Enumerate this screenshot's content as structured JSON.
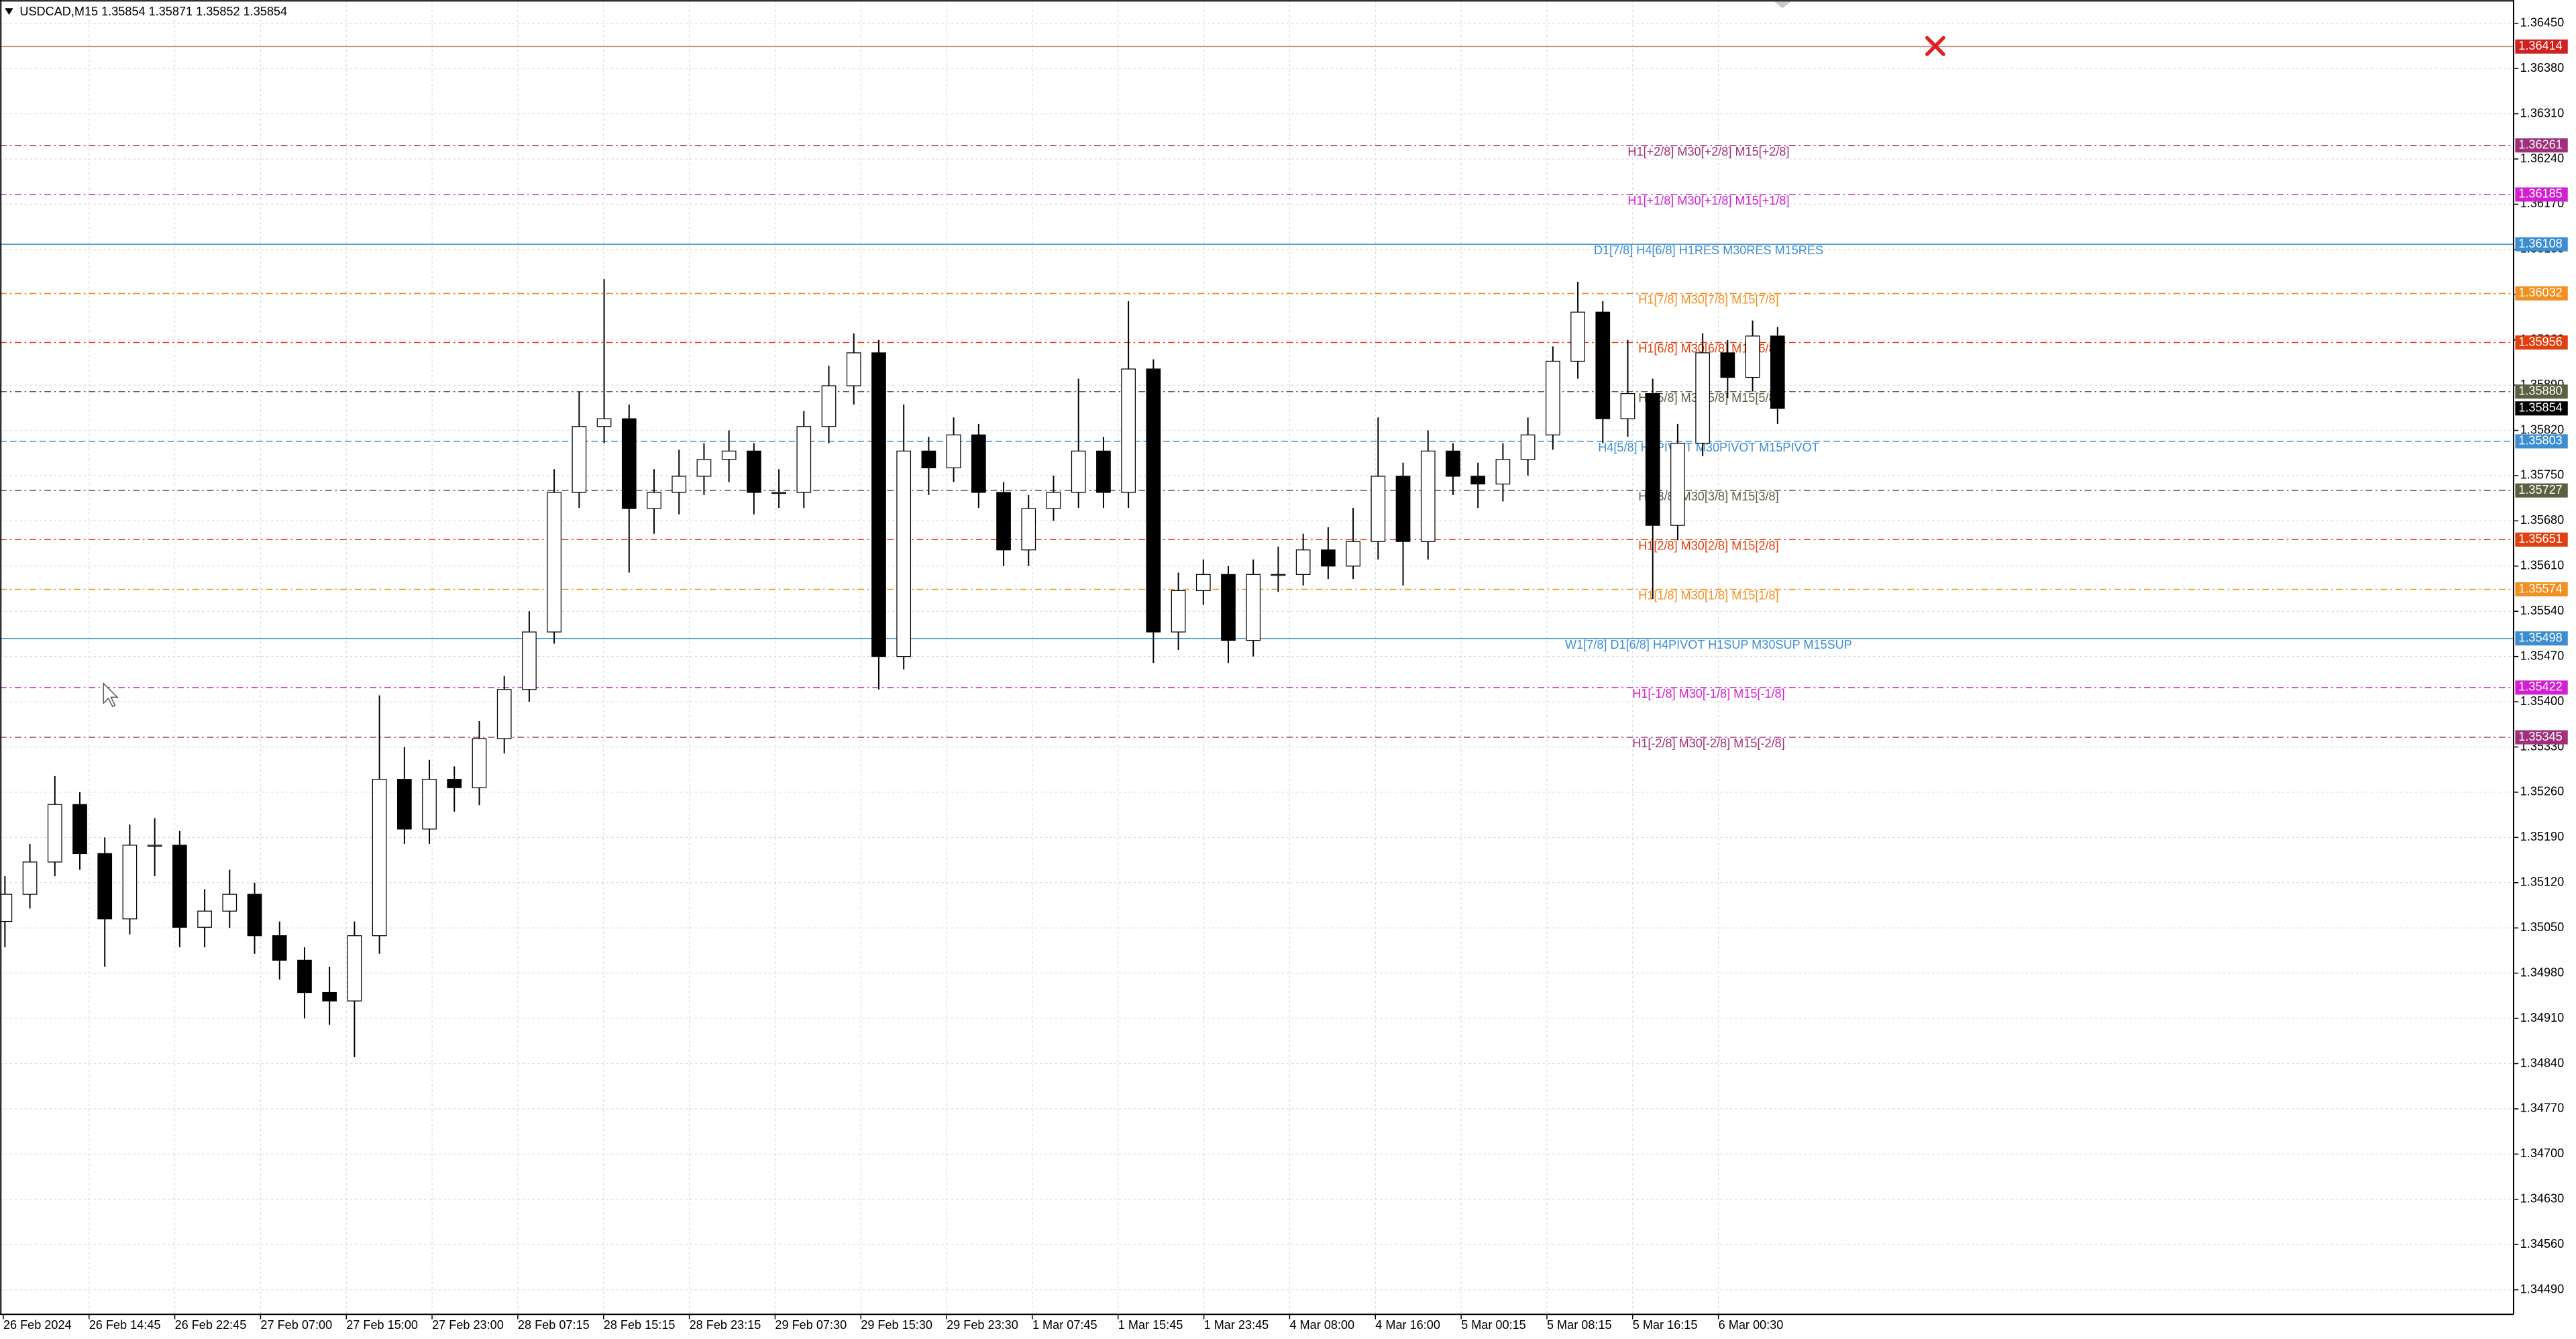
{
  "chart_data": {
    "type": "candlestick",
    "header": "USDCAD,M15  1.35854 1.35871 1.35852 1.35854",
    "ylim": [
      1.34452,
      1.36486
    ],
    "yticks": [
      {
        "value": 1.3645,
        "label": "1.36450"
      },
      {
        "value": 1.3638,
        "label": "1.36380"
      },
      {
        "value": 1.3631,
        "label": "1.36310"
      },
      {
        "value": 1.3624,
        "label": "1.36240"
      },
      {
        "value": 1.3617,
        "label": "1.36170"
      },
      {
        "value": 1.361,
        "label": "1.36100"
      },
      {
        "value": 1.3603,
        "label": "1.36030"
      },
      {
        "value": 1.3596,
        "label": "1.35960"
      },
      {
        "value": 1.3589,
        "label": "1.35890"
      },
      {
        "value": 1.3582,
        "label": "1.35820"
      },
      {
        "value": 1.3575,
        "label": "1.35750"
      },
      {
        "value": 1.3568,
        "label": "1.35680"
      },
      {
        "value": 1.3561,
        "label": "1.35610"
      },
      {
        "value": 1.3554,
        "label": "1.35540"
      },
      {
        "value": 1.3547,
        "label": "1.35470"
      },
      {
        "value": 1.354,
        "label": "1.35400"
      },
      {
        "value": 1.3533,
        "label": "1.35330"
      },
      {
        "value": 1.3526,
        "label": "1.35260"
      },
      {
        "value": 1.3519,
        "label": "1.35190"
      },
      {
        "value": 1.3512,
        "label": "1.35120"
      },
      {
        "value": 1.3505,
        "label": "1.35050"
      },
      {
        "value": 1.3498,
        "label": "1.34980"
      },
      {
        "value": 1.3491,
        "label": "1.34910"
      },
      {
        "value": 1.3484,
        "label": "1.34840"
      },
      {
        "value": 1.3477,
        "label": "1.34770"
      },
      {
        "value": 1.347,
        "label": "1.34700"
      },
      {
        "value": 1.3463,
        "label": "1.34630"
      },
      {
        "value": 1.3456,
        "label": "1.34560"
      },
      {
        "value": 1.3449,
        "label": "1.34490"
      }
    ],
    "grid": true,
    "x_labels": [
      "26 Feb 2024",
      "26 Feb 14:45",
      "26 Feb 22:45",
      "27 Feb 07:00",
      "27 Feb 15:00",
      "27 Feb 23:00",
      "28 Feb 07:15",
      "28 Feb 15:15",
      "28 Feb 23:15",
      "29 Feb 07:30",
      "29 Feb 15:30",
      "29 Feb 23:30",
      "1 Mar 07:45",
      "1 Mar 15:45",
      "1 Mar 23:45",
      "4 Mar 08:00",
      "4 Mar 16:00",
      "5 Mar 00:15",
      "5 Mar 08:15",
      "5 Mar 16:15",
      "6 Mar 00:30"
    ],
    "current_price": 1.35854,
    "current_color": "#000000",
    "bull_color": "#ffffff",
    "bear_color": "#000000",
    "candles": [
      [
        1.3506,
        1.3513,
        1.3502,
        1.35102
      ],
      [
        1.35102,
        1.3518,
        1.3508,
        1.35152
      ],
      [
        1.35152,
        1.35285,
        1.3513,
        1.35241
      ],
      [
        1.35241,
        1.3526,
        1.3514,
        1.35165
      ],
      [
        1.35165,
        1.3519,
        1.3499,
        1.35064
      ],
      [
        1.35064,
        1.3521,
        1.3504,
        1.35178
      ],
      [
        1.35178,
        1.3522,
        1.3513,
        1.35178
      ],
      [
        1.35178,
        1.352,
        1.3502,
        1.35051
      ],
      [
        1.35051,
        1.3511,
        1.3502,
        1.35076
      ],
      [
        1.35076,
        1.3514,
        1.3505,
        1.35102
      ],
      [
        1.35102,
        1.3512,
        1.3501,
        1.35038
      ],
      [
        1.35038,
        1.3506,
        1.3497,
        1.35
      ],
      [
        1.35,
        1.3502,
        1.3491,
        1.3495
      ],
      [
        1.3495,
        1.3499,
        1.349,
        1.34937
      ],
      [
        1.34937,
        1.3506,
        1.3485,
        1.35038
      ],
      [
        1.35038,
        1.3541,
        1.3501,
        1.3528
      ],
      [
        1.3528,
        1.3533,
        1.3518,
        1.35203
      ],
      [
        1.35203,
        1.3531,
        1.3518,
        1.3528
      ],
      [
        1.3528,
        1.353,
        1.3523,
        1.35267
      ],
      [
        1.35267,
        1.3537,
        1.3524,
        1.35343
      ],
      [
        1.35343,
        1.3544,
        1.3532,
        1.35419
      ],
      [
        1.35419,
        1.3554,
        1.354,
        1.35508
      ],
      [
        1.35508,
        1.3576,
        1.3549,
        1.35724
      ],
      [
        1.35724,
        1.3588,
        1.357,
        1.35826
      ],
      [
        1.35826,
        1.36054,
        1.358,
        1.35838
      ],
      [
        1.35838,
        1.3586,
        1.356,
        1.35699
      ],
      [
        1.35699,
        1.3576,
        1.3566,
        1.35724
      ],
      [
        1.35724,
        1.3579,
        1.3569,
        1.35749
      ],
      [
        1.35749,
        1.358,
        1.3572,
        1.35775
      ],
      [
        1.35775,
        1.3582,
        1.3574,
        1.35788
      ],
      [
        1.35788,
        1.358,
        1.3569,
        1.35724
      ],
      [
        1.35724,
        1.3576,
        1.357,
        1.35724
      ],
      [
        1.35724,
        1.3585,
        1.357,
        1.35826
      ],
      [
        1.35826,
        1.3592,
        1.358,
        1.35889
      ],
      [
        1.35889,
        1.3597,
        1.3586,
        1.3594
      ],
      [
        1.3594,
        1.3596,
        1.35419,
        1.3547
      ],
      [
        1.3547,
        1.3586,
        1.3545,
        1.35788
      ],
      [
        1.35788,
        1.3581,
        1.3572,
        1.35762
      ],
      [
        1.35762,
        1.3584,
        1.3574,
        1.35813
      ],
      [
        1.35813,
        1.3583,
        1.357,
        1.35724
      ],
      [
        1.35724,
        1.3574,
        1.3561,
        1.35635
      ],
      [
        1.35635,
        1.3572,
        1.3561,
        1.35699
      ],
      [
        1.35699,
        1.3575,
        1.3568,
        1.35724
      ],
      [
        1.35724,
        1.359,
        1.357,
        1.35788
      ],
      [
        1.35788,
        1.3581,
        1.357,
        1.35724
      ],
      [
        1.35724,
        1.3602,
        1.357,
        1.35915
      ],
      [
        1.35915,
        1.3593,
        1.3546,
        1.35508
      ],
      [
        1.35508,
        1.356,
        1.3548,
        1.35572
      ],
      [
        1.35572,
        1.3562,
        1.3555,
        1.35597
      ],
      [
        1.35597,
        1.3561,
        1.3546,
        1.35495
      ],
      [
        1.35495,
        1.3562,
        1.3547,
        1.35597
      ],
      [
        1.35597,
        1.3564,
        1.3557,
        1.35597
      ],
      [
        1.35597,
        1.3566,
        1.3558,
        1.35635
      ],
      [
        1.35635,
        1.3567,
        1.3559,
        1.3561
      ],
      [
        1.3561,
        1.357,
        1.3559,
        1.35648
      ],
      [
        1.35648,
        1.3584,
        1.3562,
        1.35749
      ],
      [
        1.35749,
        1.3577,
        1.3558,
        1.35648
      ],
      [
        1.35648,
        1.3582,
        1.3562,
        1.35788
      ],
      [
        1.35788,
        1.358,
        1.3572,
        1.35749
      ],
      [
        1.35749,
        1.3577,
        1.357,
        1.35737
      ],
      [
        1.35737,
        1.358,
        1.3571,
        1.35775
      ],
      [
        1.35775,
        1.3584,
        1.3575,
        1.35813
      ],
      [
        1.35813,
        1.3595,
        1.3579,
        1.35927
      ],
      [
        1.35927,
        1.3605,
        1.359,
        1.36003
      ],
      [
        1.36003,
        1.3602,
        1.358,
        1.35838
      ],
      [
        1.35838,
        1.3596,
        1.3581,
        1.35877
      ],
      [
        1.35877,
        1.359,
        1.35559,
        1.35673
      ],
      [
        1.35673,
        1.3583,
        1.3565,
        1.358
      ],
      [
        1.358,
        1.3597,
        1.3578,
        1.3594
      ],
      [
        1.3594,
        1.3596,
        1.3587,
        1.35902
      ],
      [
        1.35902,
        1.3599,
        1.3588,
        1.35966
      ],
      [
        1.35966,
        1.3598,
        1.3583,
        1.35854
      ]
    ],
    "levels": [
      {
        "price": 1.36414,
        "price_label": "1.36414",
        "color": "#d02020",
        "line_color": "#c08878",
        "style": "solid"
      },
      {
        "price": 1.36261,
        "price_label": "1.36261",
        "label": "H1[+2/8] M30[+2/8] M15[+2/8]",
        "color": "#a0307a",
        "style": "dashdot"
      },
      {
        "price": 1.36185,
        "price_label": "1.36185",
        "label": "H1[+1/8] M30[+1/8] M15[+1/8]",
        "color": "#d020d0",
        "style": "dashdot"
      },
      {
        "price": 1.36108,
        "price_label": "1.36108",
        "label": "D1[7/8] H4[6/8] H1RES M30RES M15RES",
        "color": "#3c8ed0",
        "style": "solid"
      },
      {
        "price": 1.36032,
        "price_label": "1.36032",
        "label": "H1[7/8] M30[7/8] M15[7/8]",
        "color": "#f09020",
        "style": "dashdot"
      },
      {
        "price": 1.35956,
        "price_label": "1.35956",
        "label": "H1[6/8] M30[6/8] M15[6/8]",
        "color": "#e04010",
        "style": "dashdot"
      },
      {
        "price": 1.3588,
        "price_label": "1.35880",
        "label": "H1[5/8] M30[5/8] M15[5/8]",
        "color": "#5a6040",
        "style": "dashdot"
      },
      {
        "price": 1.35803,
        "price_label": "1.35803",
        "label": "H4[5/8] H1PIVOT M30PIVOT M15PIVOT",
        "color": "#3c8ed0",
        "style": "dash"
      },
      {
        "price": 1.35727,
        "price_label": "1.35727",
        "label": "H1[3/8] M30[3/8] M15[3/8]",
        "color": "#5a6040",
        "style": "dashdot"
      },
      {
        "price": 1.35651,
        "price_label": "1.35651",
        "label": "H1[2/8] M30[2/8] M15[2/8]",
        "color": "#e04010",
        "style": "dashdot"
      },
      {
        "price": 1.35574,
        "price_label": "1.35574",
        "label": "H1[1/8] M30[1/8] M15[1/8]",
        "color": "#f09020",
        "style": "dashdot"
      },
      {
        "price": 1.35498,
        "price_label": "1.35498",
        "label": "W1[7/8] D1[6/8] H4PIVOT H1SUP M30SUP M15SUP",
        "color": "#3c8ed0",
        "style": "solid"
      },
      {
        "price": 1.35422,
        "price_label": "1.35422",
        "label": "H1[-1/8] M30[-1/8] M15[-1/8]",
        "color": "#d020d0",
        "style": "dashdot"
      },
      {
        "price": 1.35345,
        "price_label": "1.35345",
        "label": "H1[-2/8] M30[-2/8] M15[-2/8]",
        "color": "#a0307a",
        "style": "dashdot"
      }
    ]
  }
}
